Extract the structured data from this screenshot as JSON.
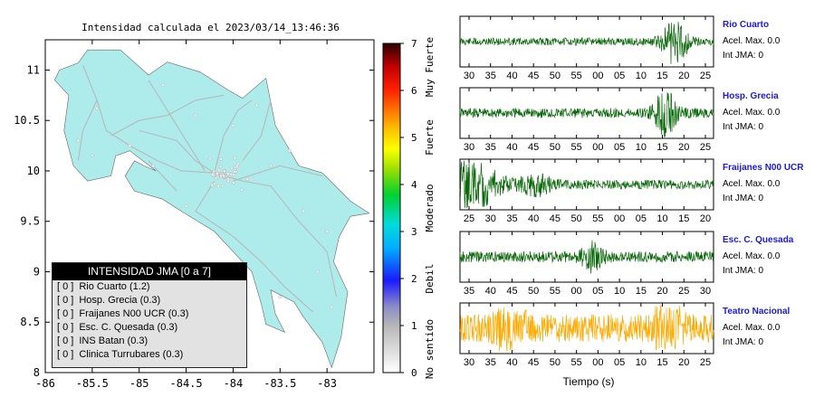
{
  "title": "Intensidad calculada el 2023/03/14_13:46:36",
  "colors": {
    "land": "#aeecec",
    "road": "#b8b8b8",
    "trace_green": "#0a6a0a",
    "trace_orange": "#ffaa00",
    "station_blue": "#1a1ad8"
  },
  "chart_data": [
    {
      "type": "map",
      "xlim": [
        -86,
        -82.5
      ],
      "ylim": [
        8,
        11.3
      ],
      "x_ticks": [
        "-86",
        "-85.5",
        "-85",
        "-84.5",
        "-84",
        "-83.5",
        "-83"
      ],
      "y_ticks": [
        "8",
        "8.5",
        "9",
        "9.5",
        "10",
        "10.5",
        "11"
      ],
      "legend": {
        "title": "INTENSIDAD JMA [0 a 7]",
        "entries": [
          {
            "tag": "[ 0 ]",
            "label": "Rio Cuarto (1.2)"
          },
          {
            "tag": "[ 0 ]",
            "label": "Hosp. Grecia (0.3)"
          },
          {
            "tag": "[ 0 ]",
            "label": "Fraijanes N00 UCR (0.3)"
          },
          {
            "tag": "[ 0 ]",
            "label": "Esc. C. Quesada (0.3)"
          },
          {
            "tag": "[ 0 ]",
            "label": "INS Batan (0.3)"
          },
          {
            "tag": "[ 0 ]",
            "label": "Clinica Turrubares (0.3)"
          }
        ]
      }
    },
    {
      "type": "colorbar",
      "ylim": [
        0,
        7
      ],
      "ticks": [
        "0",
        "1",
        "2",
        "3",
        "4",
        "5",
        "6",
        "7"
      ],
      "categories": [
        "No sentido",
        "Debil",
        "Moderado",
        "Fuerte",
        "Muy Fuerte"
      ]
    },
    {
      "type": "line",
      "xlabel": "Tiempo (s)",
      "stations": [
        {
          "name": "Rio Cuarto",
          "acel": "Acel. Max. 0.0",
          "jma": "Int JMA: 0",
          "ticks": [
            "30",
            "35",
            "40",
            "45",
            "50",
            "55",
            "00",
            "05",
            "10",
            "15",
            "20",
            "25"
          ],
          "color": "green",
          "amplitude": 0.15,
          "bursts": [
            {
              "center": 0.85,
              "width": 0.05,
              "amp": 0.85
            }
          ]
        },
        {
          "name": "Hosp. Grecia",
          "acel": "Acel. Max. 0.0",
          "jma": "Int JMA: 0",
          "ticks": [
            "30",
            "35",
            "40",
            "45",
            "50",
            "55",
            "00",
            "05",
            "10",
            "15",
            "20",
            "25"
          ],
          "color": "green",
          "amplitude": 0.2,
          "bursts": [
            {
              "center": 0.81,
              "width": 0.04,
              "amp": 0.85
            }
          ]
        },
        {
          "name": "Fraijanes N00 UCR",
          "acel": "Acel. Max. 0.0",
          "jma": "Int JMA: 0",
          "ticks": [
            "25",
            "30",
            "35",
            "40",
            "45",
            "50",
            "55",
            "00",
            "05",
            "10",
            "15",
            "20"
          ],
          "color": "green",
          "amplitude": 0.18,
          "bursts": [
            {
              "center": 0.05,
              "width": 0.1,
              "amp": 0.9
            },
            {
              "center": 0.3,
              "width": 0.06,
              "amp": 0.35
            }
          ]
        },
        {
          "name": "Esc. C. Quesada",
          "acel": "Acel. Max. 0.0",
          "jma": "Int JMA: 0",
          "ticks": [
            "35",
            "40",
            "45",
            "50",
            "55",
            "00",
            "05",
            "10",
            "15",
            "20",
            "25",
            "30"
          ],
          "color": "green",
          "amplitude": 0.22,
          "bursts": [
            {
              "center": 0.52,
              "width": 0.04,
              "amp": 0.45
            }
          ]
        },
        {
          "name": "Teatro Nacional",
          "acel": "Acel. Max. 0.0",
          "jma": "Int JMA: 0",
          "ticks": [
            "30",
            "35",
            "40",
            "45",
            "50",
            "55",
            "00",
            "05",
            "10",
            "15",
            "20",
            "25"
          ],
          "color": "orange",
          "amplitude": 0.55,
          "bursts": [
            {
              "center": 0.2,
              "width": 0.05,
              "amp": 0.85
            },
            {
              "center": 0.82,
              "width": 0.05,
              "amp": 0.85
            }
          ]
        }
      ]
    }
  ]
}
